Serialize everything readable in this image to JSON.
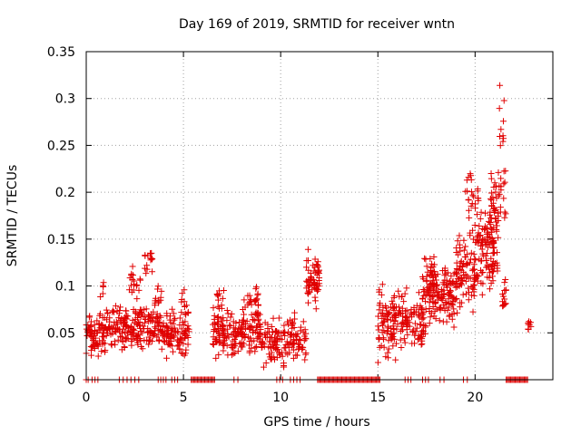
{
  "chart_data": {
    "type": "scatter",
    "title": "Day 169 of 2019, SRMTID for receiver wntn",
    "xlabel": "GPS time / hours",
    "ylabel": "SRMTID / TECUs",
    "xlim": [
      0,
      24
    ],
    "ylim": [
      0,
      0.35
    ],
    "xticks": [
      0,
      5,
      10,
      15,
      20
    ],
    "xtick_labels": [
      "0",
      "5",
      "10",
      "15",
      "20"
    ],
    "yticks": [
      0,
      0.05,
      0.1,
      0.15,
      0.2,
      0.25,
      0.3,
      0.35
    ],
    "ytick_labels": [
      "0",
      "0.05",
      "0.1",
      "0.15",
      "0.2",
      "0.25",
      "0.3",
      "0.35"
    ],
    "grid": true,
    "marker": "+",
    "color": "#e00000",
    "series": [
      {
        "name": "SRMTID",
        "segments": [
          {
            "x_start": 0.0,
            "x_end": 1.0,
            "y_mean": 0.048,
            "y_spread": 0.02,
            "count": 80
          },
          {
            "x_start": 0.7,
            "x_end": 0.9,
            "y_mean": 0.095,
            "y_spread": 0.006,
            "count": 5
          },
          {
            "x_start": 1.0,
            "x_end": 2.5,
            "y_mean": 0.055,
            "y_spread": 0.018,
            "count": 100
          },
          {
            "x_start": 2.2,
            "x_end": 2.8,
            "y_mean": 0.1,
            "y_spread": 0.015,
            "count": 18
          },
          {
            "x_start": 2.5,
            "x_end": 4.0,
            "y_mean": 0.055,
            "y_spread": 0.02,
            "count": 110
          },
          {
            "x_start": 3.0,
            "x_end": 3.4,
            "y_mean": 0.125,
            "y_spread": 0.012,
            "count": 16
          },
          {
            "x_start": 3.5,
            "x_end": 3.9,
            "y_mean": 0.085,
            "y_spread": 0.01,
            "count": 10
          },
          {
            "x_start": 4.0,
            "x_end": 5.3,
            "y_mean": 0.048,
            "y_spread": 0.018,
            "count": 90
          },
          {
            "x_start": 4.8,
            "x_end": 5.2,
            "y_mean": 0.08,
            "y_spread": 0.012,
            "count": 10
          },
          {
            "x_start": 6.5,
            "x_end": 8.0,
            "y_mean": 0.05,
            "y_spread": 0.02,
            "count": 110
          },
          {
            "x_start": 6.7,
            "x_end": 7.1,
            "y_mean": 0.085,
            "y_spread": 0.015,
            "count": 14
          },
          {
            "x_start": 8.0,
            "x_end": 9.0,
            "y_mean": 0.055,
            "y_spread": 0.022,
            "count": 80
          },
          {
            "x_start": 8.3,
            "x_end": 8.9,
            "y_mean": 0.09,
            "y_spread": 0.012,
            "count": 14
          },
          {
            "x_start": 9.0,
            "x_end": 10.2,
            "y_mean": 0.04,
            "y_spread": 0.02,
            "count": 80
          },
          {
            "x_start": 10.2,
            "x_end": 11.3,
            "y_mean": 0.045,
            "y_spread": 0.02,
            "count": 70
          },
          {
            "x_start": 11.3,
            "x_end": 12.0,
            "y_mean": 0.105,
            "y_spread": 0.022,
            "count": 60
          },
          {
            "x_start": 15.0,
            "x_end": 16.0,
            "y_mean": 0.06,
            "y_spread": 0.03,
            "count": 90
          },
          {
            "x_start": 16.0,
            "x_end": 17.5,
            "y_mean": 0.065,
            "y_spread": 0.028,
            "count": 110
          },
          {
            "x_start": 17.3,
            "x_end": 18.0,
            "y_mean": 0.115,
            "y_spread": 0.02,
            "count": 25
          },
          {
            "x_start": 17.5,
            "x_end": 19.0,
            "y_mean": 0.09,
            "y_spread": 0.025,
            "count": 130
          },
          {
            "x_start": 19.0,
            "x_end": 20.0,
            "y_mean": 0.11,
            "y_spread": 0.035,
            "count": 90
          },
          {
            "x_start": 19.5,
            "x_end": 20.2,
            "y_mean": 0.19,
            "y_spread": 0.03,
            "count": 25
          },
          {
            "x_start": 20.0,
            "x_end": 21.2,
            "y_mean": 0.14,
            "y_spread": 0.04,
            "count": 120
          },
          {
            "x_start": 20.8,
            "x_end": 21.6,
            "y_mean": 0.19,
            "y_spread": 0.03,
            "count": 45
          },
          {
            "x_start": 21.2,
            "x_end": 21.5,
            "y_mean": 0.27,
            "y_spread": 0.03,
            "count": 10
          },
          {
            "x_start": 21.3,
            "x_end": 21.7,
            "y_mean": 0.09,
            "y_spread": 0.015,
            "count": 15
          },
          {
            "x_start": 22.7,
            "x_end": 22.9,
            "y_mean": 0.058,
            "y_spread": 0.006,
            "count": 8
          }
        ],
        "zero_values": [
          {
            "x_start": 0.0,
            "x_end": 0.1,
            "y": 0,
            "count": 2
          },
          {
            "x_start": 0.3,
            "x_end": 0.6,
            "y": 0,
            "count": 3
          },
          {
            "x_start": 1.7,
            "x_end": 2.7,
            "y": 0,
            "count": 6
          },
          {
            "x_start": 3.7,
            "x_end": 4.1,
            "y": 0,
            "count": 4
          },
          {
            "x_start": 4.4,
            "x_end": 4.7,
            "y": 0,
            "count": 3
          },
          {
            "x_start": 5.4,
            "x_end": 6.6,
            "y": 0,
            "count": 20
          },
          {
            "x_start": 7.6,
            "x_end": 7.8,
            "y": 0,
            "count": 2
          },
          {
            "x_start": 9.8,
            "x_end": 10.1,
            "y": 0,
            "count": 3
          },
          {
            "x_start": 10.5,
            "x_end": 11.0,
            "y": 0,
            "count": 4
          },
          {
            "x_start": 11.9,
            "x_end": 15.1,
            "y": 0,
            "count": 55
          },
          {
            "x_start": 16.4,
            "x_end": 16.7,
            "y": 0,
            "count": 3
          },
          {
            "x_start": 17.3,
            "x_end": 17.6,
            "y": 0,
            "count": 3
          },
          {
            "x_start": 18.2,
            "x_end": 18.4,
            "y": 0,
            "count": 2
          },
          {
            "x_start": 19.4,
            "x_end": 19.6,
            "y": 0,
            "count": 2
          },
          {
            "x_start": 21.6,
            "x_end": 22.7,
            "y": 0,
            "count": 20
          }
        ]
      }
    ]
  }
}
